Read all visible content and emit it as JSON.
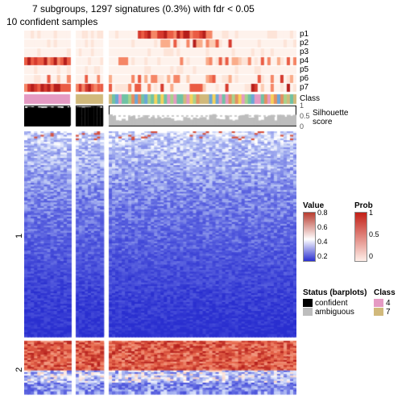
{
  "title_line1": "7 subgroups, 1297 signatures (0.3%) with fdr < 0.05",
  "title_line2": "10 confident samples",
  "p_rows": [
    "p1",
    "p2",
    "p3",
    "p4",
    "p5",
    "p6",
    "p7"
  ],
  "class_label": "Class",
  "silhouette_label": "Silhouette\nscore",
  "row_groups": [
    "1",
    "2"
  ],
  "legends": {
    "value": {
      "title": "Value",
      "ticks": [
        "0.8",
        "0.6",
        "0.4",
        "0.2"
      ],
      "top": "#b83c2f",
      "bot": "#2a2fd0"
    },
    "prob": {
      "title": "Prob",
      "ticks": [
        "1",
        "0.5",
        "0"
      ],
      "top": "#c21f16",
      "bot": "#feeee8"
    },
    "status": {
      "title": "Status (barplots)",
      "items": [
        {
          "l": "confident",
          "c": "#000000"
        },
        {
          "l": "ambiguous",
          "c": "#bdbdbd"
        }
      ]
    },
    "class": {
      "title": "Class",
      "items": [
        {
          "l": "4",
          "c": "#e59ac3"
        },
        {
          "l": "7",
          "c": "#d1b97b"
        }
      ]
    }
  },
  "layout": {
    "col_blocks": [
      {
        "x": 0,
        "w": 0.17
      },
      {
        "x": 0.19,
        "w": 0.1
      },
      {
        "x": 0.31,
        "w": 0.69
      }
    ],
    "p_band_h": 10,
    "p_gap": 1,
    "class_h": 12,
    "sil_h": 26,
    "gap_after_p": 2,
    "gap_after_class": 2,
    "gap_after_sil": 6,
    "heat_groups": [
      {
        "h": 0.78
      },
      {
        "h": 0.2
      }
    ],
    "heat_gap": 6
  },
  "palette": {
    "p_colors": [
      "#fef2ec",
      "#fde4d8",
      "#fccbb2",
      "#faac8a",
      "#f58666",
      "#ea5c44",
      "#d63a2e",
      "#b51f1c"
    ],
    "class_colors": [
      "#e59ac3",
      "#d1b97b",
      "#6fc3a5",
      "#f6d35b",
      "#6aa6d8",
      "#a8d28c",
      "#e38f62"
    ],
    "value_stops": [
      {
        "p": 0,
        "c": "#2a2fd0"
      },
      {
        "p": 0.25,
        "c": "#5b63e0"
      },
      {
        "p": 0.45,
        "c": "#b8c4f4"
      },
      {
        "p": 0.55,
        "c": "#ffffff"
      },
      {
        "p": 0.7,
        "c": "#f7b7a0"
      },
      {
        "p": 0.85,
        "c": "#e86a4e"
      },
      {
        "p": 1,
        "c": "#b51f1c"
      }
    ]
  },
  "sil_ticks": [
    "1",
    "0.5",
    "0"
  ],
  "seed": 20240607
}
